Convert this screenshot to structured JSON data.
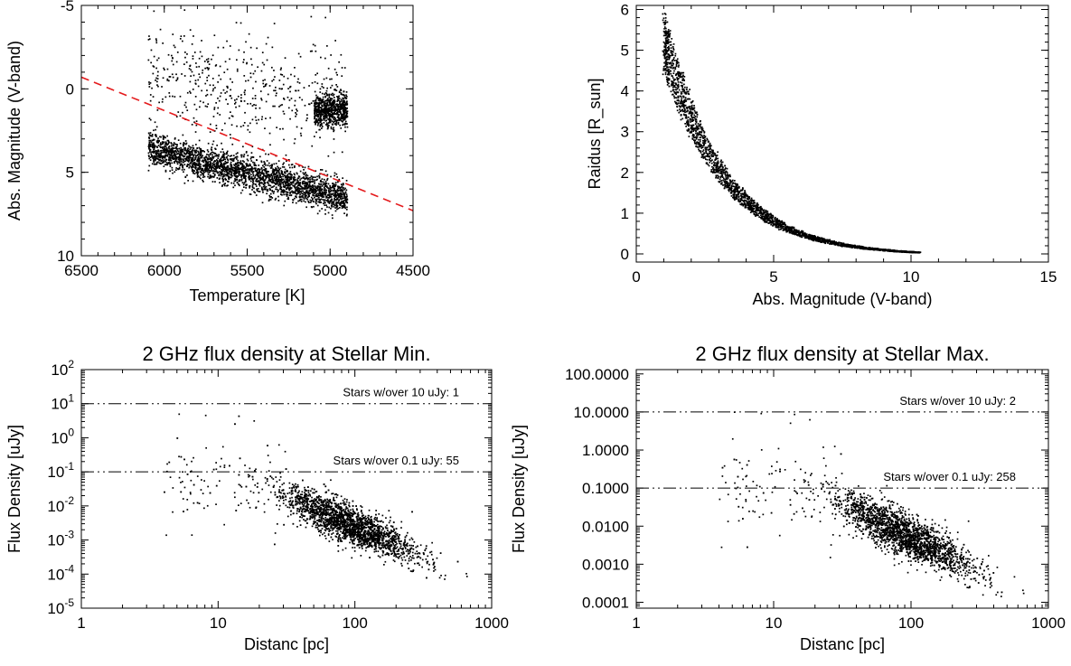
{
  "chart_data": [
    {
      "type": "scatter",
      "title": "",
      "xlabel": "Temperature [K]",
      "ylabel": "Abs. Magnitude (V-band)",
      "xlim": [
        6500,
        4500
      ],
      "ylim": [
        10,
        -5
      ],
      "xscale": "linear",
      "yscale": "linear",
      "xticks": [
        6500,
        6000,
        5500,
        5000,
        4500
      ],
      "yticks": [
        -5,
        0,
        5,
        10
      ],
      "xticklabels": [
        "6500",
        "6000",
        "5500",
        "5000",
        "4500"
      ],
      "yticklabels": [
        "-5",
        "0",
        "5",
        "10"
      ],
      "grid": false,
      "legend": "none",
      "series": [
        {
          "kind": "points",
          "color": "#000000",
          "clusters": [
            {
              "x": [
                6100,
                4900
              ],
              "y_at_x0": 3.5,
              "y_at_x1": 6.5,
              "spread": 0.9,
              "count": 2600
            },
            {
              "x": [
                5100,
                4900
              ],
              "y_at_x0": 1.2,
              "y_at_x1": 1.2,
              "spread": 0.9,
              "count": 700
            },
            {
              "x": [
                6100,
                4900
              ],
              "y_at_x0": -1.0,
              "y_at_x1": 1.0,
              "spread": 3.0,
              "count": 500
            }
          ]
        },
        {
          "kind": "line",
          "style": "dashed",
          "color": "#e41a1c",
          "x": [
            6500,
            4500
          ],
          "y": [
            -0.7,
            7.3
          ]
        }
      ]
    },
    {
      "type": "scatter",
      "title": "",
      "xlabel": "Abs. Magnitude (V-band)",
      "ylabel": "Raidus [R_sun]",
      "xlim": [
        0,
        15
      ],
      "ylim": [
        -0.2,
        6.1
      ],
      "xscale": "linear",
      "yscale": "linear",
      "xticks": [
        0,
        5,
        10,
        15
      ],
      "yticks": [
        0,
        1,
        2,
        3,
        4,
        5,
        6
      ],
      "xticklabels": [
        "0",
        "5",
        "10",
        "15"
      ],
      "yticklabels": [
        "0",
        "1",
        "2",
        "3",
        "4",
        "5",
        "6"
      ],
      "grid": false,
      "legend": "none",
      "series": [
        {
          "kind": "curve",
          "color": "#000000",
          "x_range": [
            1.0,
            10.3
          ],
          "r_at_m1": 5.25,
          "count": 2600
        }
      ]
    },
    {
      "type": "scatter",
      "title": "2 GHz flux density at Stellar Min.",
      "xlabel": "Distanc [pc]",
      "ylabel": "Flux Density [uJy]",
      "xlim": [
        1,
        1000
      ],
      "ylim": [
        1e-05,
        100
      ],
      "xscale": "log",
      "yscale": "log",
      "xticks": [
        1,
        10,
        100,
        1000
      ],
      "yticks": [
        1e-05,
        0.0001,
        0.001,
        0.01,
        0.1,
        1,
        10,
        100
      ],
      "xticklabels": [
        "1",
        "10",
        "100",
        "1000"
      ],
      "ytick_base": "10",
      "ytick_exponents": [
        "-5",
        "-4",
        "-3",
        "-2",
        "-1",
        "0",
        "1",
        "2"
      ],
      "grid": false,
      "legend": "none",
      "thresholds": [
        {
          "value": 10,
          "label": "Stars w/over 10 uJy:  1"
        },
        {
          "value": 0.1,
          "label": "Stars w/over 0.1 uJy:  55"
        }
      ],
      "series": [
        {
          "kind": "cloud",
          "color": "#000000",
          "center_distance": 90,
          "center_flux": 0.003,
          "count": 2600
        }
      ]
    },
    {
      "type": "scatter",
      "title": "2 GHz flux density at Stellar Max.",
      "xlabel": "Distanc [pc]",
      "ylabel": "Flux Density [uJy]",
      "xlim": [
        1,
        1000
      ],
      "ylim": [
        7e-05,
        130
      ],
      "xscale": "log",
      "yscale": "log",
      "xticks": [
        1,
        10,
        100,
        1000
      ],
      "yticks": [
        0.0001,
        0.001,
        0.01,
        0.1,
        1,
        10,
        100
      ],
      "xticklabels": [
        "1",
        "10",
        "100",
        "1000"
      ],
      "yticklabels": [
        "0.0001",
        "0.0010",
        "0.0100",
        "0.1000",
        "1.0000",
        "10.0000",
        "100.0000"
      ],
      "grid": false,
      "legend": "none",
      "thresholds": [
        {
          "value": 10,
          "label": "Stars w/over 10 uJy:  2"
        },
        {
          "value": 0.1,
          "label": "Stars w/over 0.1 uJy: 258"
        }
      ],
      "series": [
        {
          "kind": "cloud",
          "color": "#000000",
          "center_distance": 90,
          "center_flux": 0.006,
          "count": 2600
        }
      ]
    }
  ]
}
